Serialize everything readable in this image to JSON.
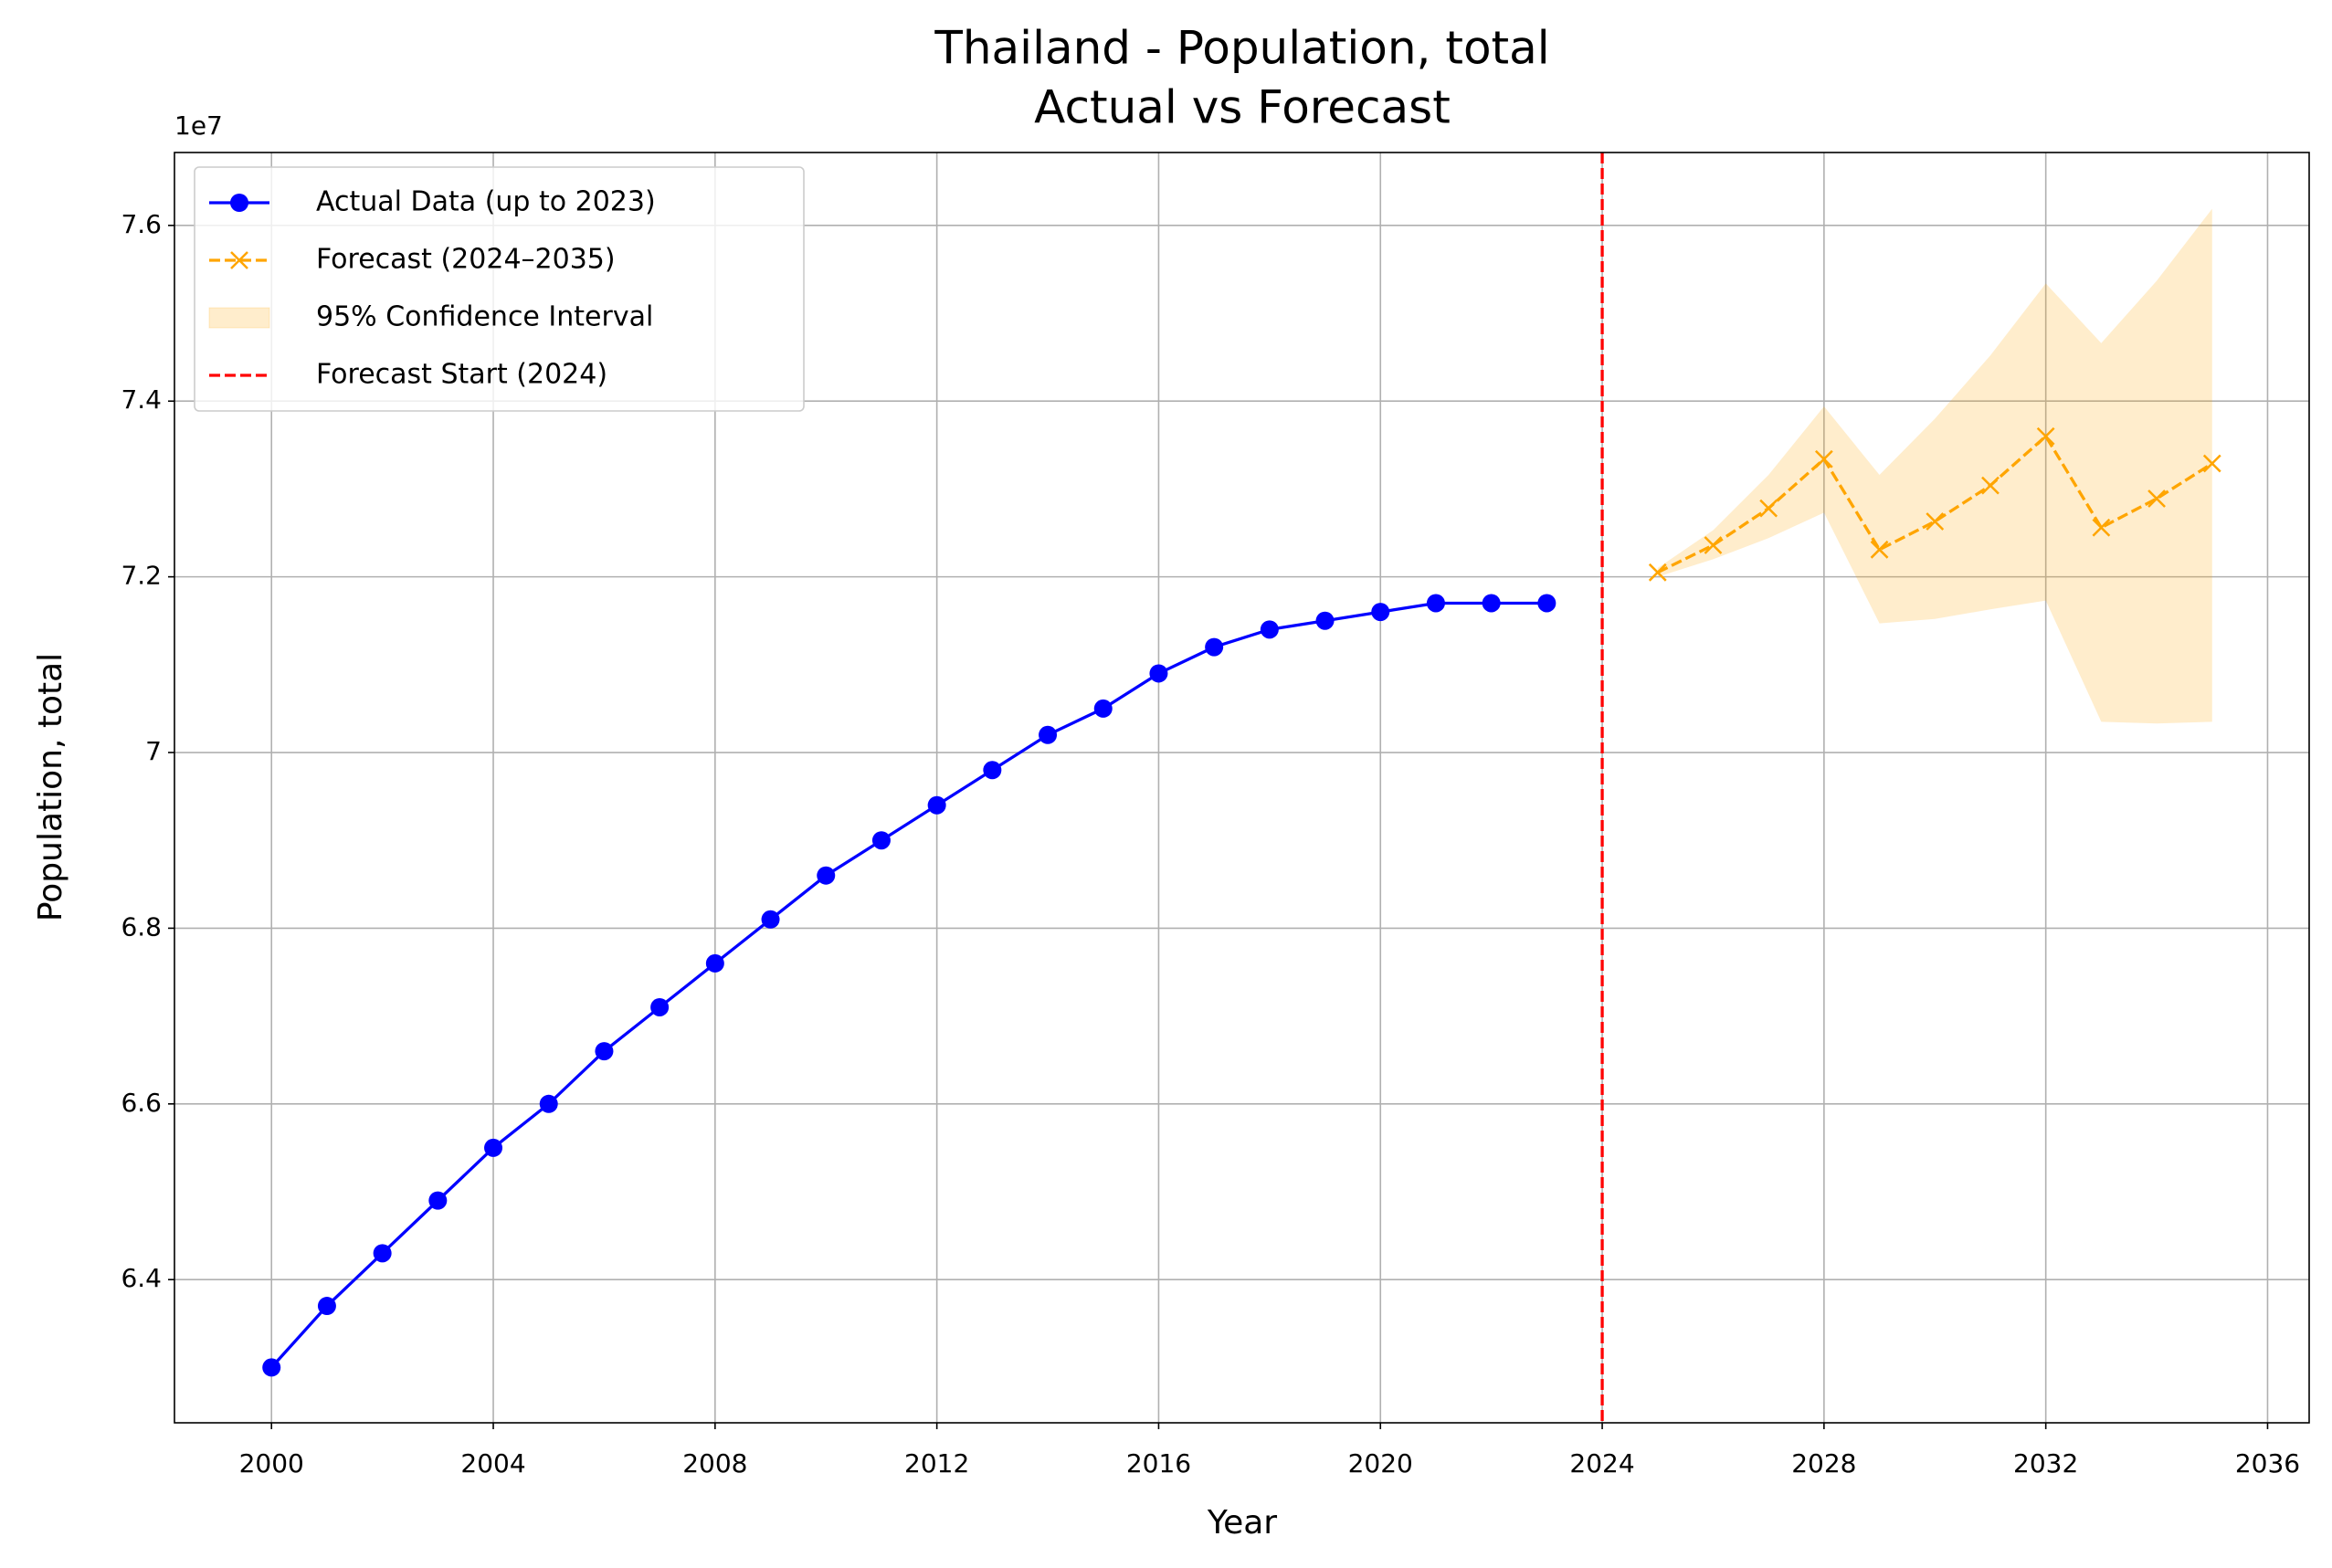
{
  "chart_data": {
    "type": "line",
    "title": "Thailand - Population, total",
    "subtitle": "Actual vs Forecast",
    "x_label": "Year",
    "y_label": "Population, total",
    "y_offset_label": "1e7",
    "xlim": [
      1998.25,
      2036.75
    ],
    "ylim": [
      6.237,
      7.683
    ],
    "xticks": [
      2000,
      2004,
      2008,
      2012,
      2016,
      2020,
      2024,
      2028,
      2032,
      2036
    ],
    "yticks": [
      6.4,
      6.6,
      6.8,
      7.0,
      7.2,
      7.4,
      7.6
    ],
    "grid": true,
    "legend_position": "upper-left",
    "series": [
      {
        "name": "Actual Data (up to 2023)",
        "color": "#0000ff",
        "marker": "circle",
        "dash": "solid",
        "x": [
          2000,
          2001,
          2002,
          2003,
          2004,
          2005,
          2006,
          2007,
          2008,
          2009,
          2010,
          2011,
          2012,
          2013,
          2014,
          2015,
          2016,
          2017,
          2018,
          2019,
          2020,
          2021,
          2022,
          2023
        ],
        "values": [
          6.3,
          6.37,
          6.43,
          6.49,
          6.55,
          6.6,
          6.66,
          6.71,
          6.76,
          6.81,
          6.86,
          6.9,
          6.94,
          6.98,
          7.02,
          7.05,
          7.09,
          7.12,
          7.14,
          7.15,
          7.16,
          7.17,
          7.17,
          7.17
        ]
      },
      {
        "name": "Forecast (2024–2035)",
        "color": "#ffa500",
        "marker": "x",
        "dash": "dashed",
        "x": [
          2025,
          2026,
          2027,
          2028,
          2029,
          2030,
          2031,
          2032,
          2033,
          2034,
          2035
        ],
        "values": [
          7.205,
          7.236,
          7.278,
          7.334,
          7.231,
          7.263,
          7.304,
          7.36,
          7.256,
          7.289,
          7.329
        ]
      },
      {
        "name": "95% Confidence Interval",
        "color": "#ffa500",
        "kind": "band",
        "x": [
          2025,
          2026,
          2027,
          2028,
          2029,
          2030,
          2031,
          2032,
          2033,
          2034,
          2035
        ],
        "upper": [
          7.21,
          7.253,
          7.316,
          7.394,
          7.316,
          7.38,
          7.452,
          7.534,
          7.466,
          7.537,
          7.619
        ],
        "lower": [
          7.2,
          7.22,
          7.244,
          7.273,
          7.147,
          7.152,
          7.163,
          7.173,
          7.035,
          7.033,
          7.035
        ]
      },
      {
        "name": "Forecast Start (2024)",
        "color": "#ff0000",
        "kind": "vline",
        "x": 2024
      }
    ]
  }
}
